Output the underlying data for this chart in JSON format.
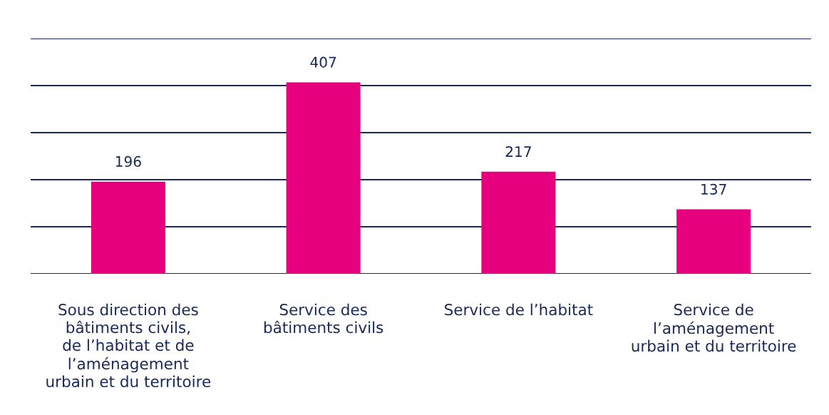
{
  "chart_data": {
    "type": "bar",
    "categories": [
      "Sous direction des\nbâtiments civils,\nde l’habitat et de\nl’aménagement\nurbain et du territoire",
      "Service des\nbâtiments civils",
      "Service de l’habitat",
      "Service de\nl’aménagement\nurbain et du territoire"
    ],
    "values": [
      196,
      407,
      217,
      137
    ],
    "color": "#e6007e",
    "ylim": [
      0,
      500
    ],
    "yticks": [
      {
        "value": 0,
        "label": null
      },
      {
        "value": 100,
        "label": null
      },
      {
        "value": 200,
        "label": null
      },
      {
        "value": 300,
        "label": null
      },
      {
        "value": 400,
        "label": null
      },
      {
        "value": 500,
        "label": null
      }
    ],
    "grid": "y",
    "data_labels": true,
    "tick_labels": "x"
  }
}
